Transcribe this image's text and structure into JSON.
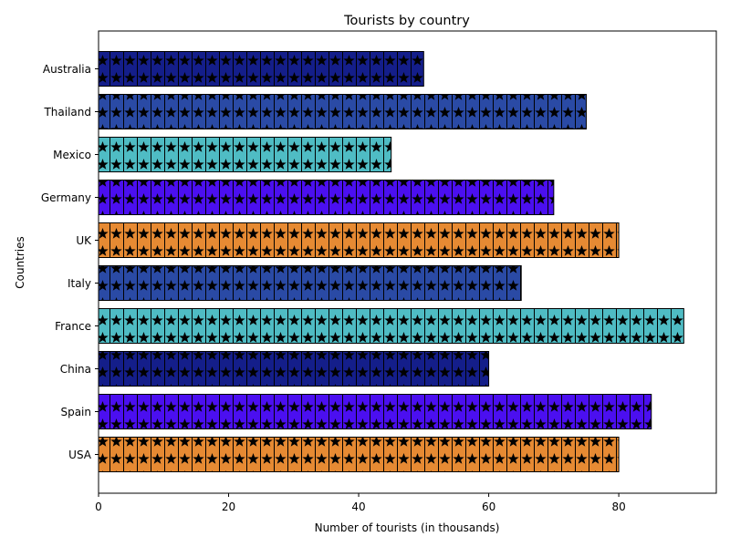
{
  "chart_data": {
    "type": "bar",
    "orientation": "horizontal",
    "title": "Tourists by country",
    "xlabel": "Number of tourists (in thousands)",
    "ylabel": "Countries",
    "xlim": [
      0,
      95
    ],
    "x_ticks": [
      0,
      20,
      40,
      60,
      80
    ],
    "grid": false,
    "categories": [
      "USA",
      "Spain",
      "China",
      "France",
      "Italy",
      "UK",
      "Germany",
      "Mexico",
      "Thailand",
      "Australia"
    ],
    "values": [
      80,
      85,
      60,
      90,
      65,
      80,
      70,
      45,
      75,
      50
    ],
    "colors": [
      "#e68a33",
      "#4b0ff0",
      "#141e8a",
      "#4fbcc4",
      "#2a4aa5",
      "#e68a33",
      "#4b0ff0",
      "#4fbcc4",
      "#2a4aa5",
      "#141e8a"
    ],
    "hatch": "star"
  }
}
